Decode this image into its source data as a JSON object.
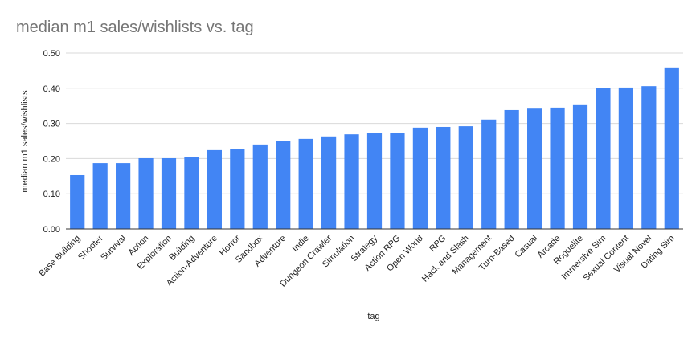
{
  "chart_data": {
    "type": "bar",
    "title": "median m1 sales/wishlists vs. tag",
    "x_label": "tag",
    "y_label": "median m1 sales/wishlists",
    "categories": [
      "Base Building",
      "Shooter",
      "Survival",
      "Action",
      "Exploration",
      "Building",
      "Action-Adventure",
      "Horror",
      "Sandbox",
      "Adventure",
      "Indie",
      "Dungeon Crawler",
      "Simulation",
      "Strategy",
      "Action RPG",
      "Open World",
      "RPG",
      "Hack and Slash",
      "Management",
      "Turn-Based",
      "Casual",
      "Arcade",
      "Roguelite",
      "Immersive Sim",
      "Sexual Content",
      "Visual Novel",
      "Dating Sim"
    ],
    "values": [
      0.153,
      0.187,
      0.187,
      0.201,
      0.201,
      0.205,
      0.224,
      0.228,
      0.24,
      0.249,
      0.256,
      0.263,
      0.269,
      0.272,
      0.272,
      0.288,
      0.29,
      0.292,
      0.311,
      0.338,
      0.342,
      0.345,
      0.352,
      0.4,
      0.402,
      0.406,
      0.457
    ],
    "color": "#4285f4",
    "ylim": [
      0,
      0.5
    ],
    "yticks": [
      {
        "value": 0,
        "label": "0.00"
      },
      {
        "value": 0.1,
        "label": "0.10"
      },
      {
        "value": 0.2,
        "label": "0.20"
      },
      {
        "value": 0.3,
        "label": "0.30"
      },
      {
        "value": 0.4,
        "label": "0.40"
      },
      {
        "value": 0.5,
        "label": "0.50"
      }
    ],
    "grid": true
  }
}
